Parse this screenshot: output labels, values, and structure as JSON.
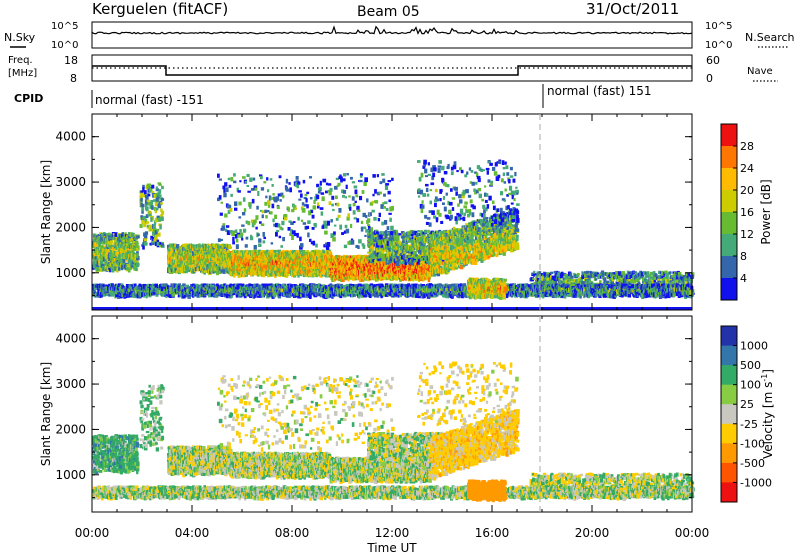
{
  "header": {
    "station": "Kerguelen (fitACF)",
    "beam": "Beam 05",
    "date": "31/Oct/2011"
  },
  "noise_panel": {
    "left_label": "N.Sky",
    "right_label": "N.Search",
    "left_ticks": [
      "10^5",
      "10^0"
    ],
    "right_ticks": [
      "10^5",
      "10^0"
    ]
  },
  "freq_panel": {
    "left_label_1": "Freq.",
    "left_label_2": "[MHz]",
    "right_label": "Nave",
    "left_ticks": [
      "18",
      "8"
    ],
    "right_ticks": [
      "60",
      "0"
    ]
  },
  "cpid_panel": {
    "label": "CPID",
    "segments": [
      {
        "text": "normal (fast) -151"
      },
      {
        "text": "normal (fast) 151"
      }
    ]
  },
  "chart_data": [
    {
      "type": "heatmap",
      "title": "Power",
      "ylabel": "Slant Range [km]",
      "xlabel": "Time UT",
      "ylim": [
        180,
        4500
      ],
      "xlim": [
        0,
        24
      ],
      "yticks": [
        "1000",
        "2000",
        "3000",
        "4000"
      ],
      "xticks": [
        "00:00",
        "04:00",
        "08:00",
        "12:00",
        "16:00",
        "20:00",
        "00:00"
      ],
      "colorbar": {
        "label": "Power [dB]",
        "ticks": [
          "28",
          "24",
          "20",
          "16",
          "12",
          "8",
          "4"
        ],
        "colors": [
          "#ee1111",
          "#ff7700",
          "#ffbb00",
          "#cccc00",
          "#66bb33",
          "#44aa77",
          "#3366aa",
          "#1111ee"
        ]
      }
    },
    {
      "type": "heatmap",
      "title": "Velocity",
      "ylabel": "Slant Range [km]",
      "xlabel": "Time UT",
      "ylim": [
        180,
        4500
      ],
      "xlim": [
        0,
        24
      ],
      "yticks": [
        "1000",
        "2000",
        "3000",
        "4000"
      ],
      "xticks": [
        "00:00",
        "04:00",
        "08:00",
        "12:00",
        "16:00",
        "20:00",
        "00:00"
      ],
      "colorbar": {
        "label": "Velocity [m s",
        "label_sup": "-1",
        "label_end": "]",
        "ticks": [
          "1000",
          "500",
          "100",
          "25",
          "-25",
          "-100",
          "-500",
          "-1000"
        ],
        "colors": [
          "#2233aa",
          "#3377aa",
          "#33aa66",
          "#88cc44",
          "#c8c8c0",
          "#ffcc00",
          "#ff9900",
          "#ff5500",
          "#ee1111"
        ]
      }
    }
  ]
}
